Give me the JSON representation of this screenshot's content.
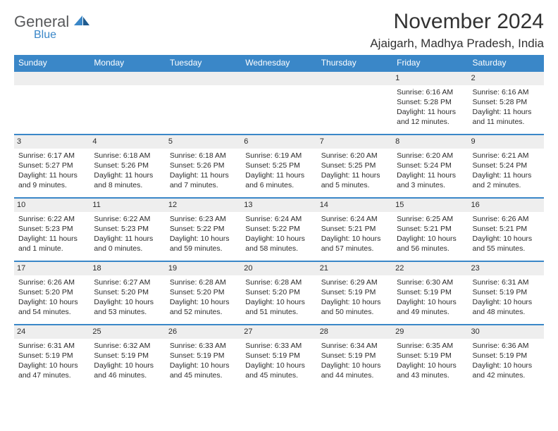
{
  "header": {
    "logo_general": "General",
    "logo_blue": "Blue",
    "month_title": "November 2024",
    "location": "Ajaigarh, Madhya Pradesh, India"
  },
  "style": {
    "accent_color": "#3a87c8",
    "daynum_bg": "#eeeeee",
    "text_color": "#2b2b2b",
    "header_text_color": "#ffffff",
    "logo_gray": "#58595b"
  },
  "daynames": [
    "Sunday",
    "Monday",
    "Tuesday",
    "Wednesday",
    "Thursday",
    "Friday",
    "Saturday"
  ],
  "weeks": [
    [
      null,
      null,
      null,
      null,
      null,
      {
        "n": "1",
        "sunrise": "Sunrise: 6:16 AM",
        "sunset": "Sunset: 5:28 PM",
        "daylight1": "Daylight: 11 hours",
        "daylight2": "and 12 minutes."
      },
      {
        "n": "2",
        "sunrise": "Sunrise: 6:16 AM",
        "sunset": "Sunset: 5:28 PM",
        "daylight1": "Daylight: 11 hours",
        "daylight2": "and 11 minutes."
      }
    ],
    [
      {
        "n": "3",
        "sunrise": "Sunrise: 6:17 AM",
        "sunset": "Sunset: 5:27 PM",
        "daylight1": "Daylight: 11 hours",
        "daylight2": "and 9 minutes."
      },
      {
        "n": "4",
        "sunrise": "Sunrise: 6:18 AM",
        "sunset": "Sunset: 5:26 PM",
        "daylight1": "Daylight: 11 hours",
        "daylight2": "and 8 minutes."
      },
      {
        "n": "5",
        "sunrise": "Sunrise: 6:18 AM",
        "sunset": "Sunset: 5:26 PM",
        "daylight1": "Daylight: 11 hours",
        "daylight2": "and 7 minutes."
      },
      {
        "n": "6",
        "sunrise": "Sunrise: 6:19 AM",
        "sunset": "Sunset: 5:25 PM",
        "daylight1": "Daylight: 11 hours",
        "daylight2": "and 6 minutes."
      },
      {
        "n": "7",
        "sunrise": "Sunrise: 6:20 AM",
        "sunset": "Sunset: 5:25 PM",
        "daylight1": "Daylight: 11 hours",
        "daylight2": "and 5 minutes."
      },
      {
        "n": "8",
        "sunrise": "Sunrise: 6:20 AM",
        "sunset": "Sunset: 5:24 PM",
        "daylight1": "Daylight: 11 hours",
        "daylight2": "and 3 minutes."
      },
      {
        "n": "9",
        "sunrise": "Sunrise: 6:21 AM",
        "sunset": "Sunset: 5:24 PM",
        "daylight1": "Daylight: 11 hours",
        "daylight2": "and 2 minutes."
      }
    ],
    [
      {
        "n": "10",
        "sunrise": "Sunrise: 6:22 AM",
        "sunset": "Sunset: 5:23 PM",
        "daylight1": "Daylight: 11 hours",
        "daylight2": "and 1 minute."
      },
      {
        "n": "11",
        "sunrise": "Sunrise: 6:22 AM",
        "sunset": "Sunset: 5:23 PM",
        "daylight1": "Daylight: 11 hours",
        "daylight2": "and 0 minutes."
      },
      {
        "n": "12",
        "sunrise": "Sunrise: 6:23 AM",
        "sunset": "Sunset: 5:22 PM",
        "daylight1": "Daylight: 10 hours",
        "daylight2": "and 59 minutes."
      },
      {
        "n": "13",
        "sunrise": "Sunrise: 6:24 AM",
        "sunset": "Sunset: 5:22 PM",
        "daylight1": "Daylight: 10 hours",
        "daylight2": "and 58 minutes."
      },
      {
        "n": "14",
        "sunrise": "Sunrise: 6:24 AM",
        "sunset": "Sunset: 5:21 PM",
        "daylight1": "Daylight: 10 hours",
        "daylight2": "and 57 minutes."
      },
      {
        "n": "15",
        "sunrise": "Sunrise: 6:25 AM",
        "sunset": "Sunset: 5:21 PM",
        "daylight1": "Daylight: 10 hours",
        "daylight2": "and 56 minutes."
      },
      {
        "n": "16",
        "sunrise": "Sunrise: 6:26 AM",
        "sunset": "Sunset: 5:21 PM",
        "daylight1": "Daylight: 10 hours",
        "daylight2": "and 55 minutes."
      }
    ],
    [
      {
        "n": "17",
        "sunrise": "Sunrise: 6:26 AM",
        "sunset": "Sunset: 5:20 PM",
        "daylight1": "Daylight: 10 hours",
        "daylight2": "and 54 minutes."
      },
      {
        "n": "18",
        "sunrise": "Sunrise: 6:27 AM",
        "sunset": "Sunset: 5:20 PM",
        "daylight1": "Daylight: 10 hours",
        "daylight2": "and 53 minutes."
      },
      {
        "n": "19",
        "sunrise": "Sunrise: 6:28 AM",
        "sunset": "Sunset: 5:20 PM",
        "daylight1": "Daylight: 10 hours",
        "daylight2": "and 52 minutes."
      },
      {
        "n": "20",
        "sunrise": "Sunrise: 6:28 AM",
        "sunset": "Sunset: 5:20 PM",
        "daylight1": "Daylight: 10 hours",
        "daylight2": "and 51 minutes."
      },
      {
        "n": "21",
        "sunrise": "Sunrise: 6:29 AM",
        "sunset": "Sunset: 5:19 PM",
        "daylight1": "Daylight: 10 hours",
        "daylight2": "and 50 minutes."
      },
      {
        "n": "22",
        "sunrise": "Sunrise: 6:30 AM",
        "sunset": "Sunset: 5:19 PM",
        "daylight1": "Daylight: 10 hours",
        "daylight2": "and 49 minutes."
      },
      {
        "n": "23",
        "sunrise": "Sunrise: 6:31 AM",
        "sunset": "Sunset: 5:19 PM",
        "daylight1": "Daylight: 10 hours",
        "daylight2": "and 48 minutes."
      }
    ],
    [
      {
        "n": "24",
        "sunrise": "Sunrise: 6:31 AM",
        "sunset": "Sunset: 5:19 PM",
        "daylight1": "Daylight: 10 hours",
        "daylight2": "and 47 minutes."
      },
      {
        "n": "25",
        "sunrise": "Sunrise: 6:32 AM",
        "sunset": "Sunset: 5:19 PM",
        "daylight1": "Daylight: 10 hours",
        "daylight2": "and 46 minutes."
      },
      {
        "n": "26",
        "sunrise": "Sunrise: 6:33 AM",
        "sunset": "Sunset: 5:19 PM",
        "daylight1": "Daylight: 10 hours",
        "daylight2": "and 45 minutes."
      },
      {
        "n": "27",
        "sunrise": "Sunrise: 6:33 AM",
        "sunset": "Sunset: 5:19 PM",
        "daylight1": "Daylight: 10 hours",
        "daylight2": "and 45 minutes."
      },
      {
        "n": "28",
        "sunrise": "Sunrise: 6:34 AM",
        "sunset": "Sunset: 5:19 PM",
        "daylight1": "Daylight: 10 hours",
        "daylight2": "and 44 minutes."
      },
      {
        "n": "29",
        "sunrise": "Sunrise: 6:35 AM",
        "sunset": "Sunset: 5:19 PM",
        "daylight1": "Daylight: 10 hours",
        "daylight2": "and 43 minutes."
      },
      {
        "n": "30",
        "sunrise": "Sunrise: 6:36 AM",
        "sunset": "Sunset: 5:19 PM",
        "daylight1": "Daylight: 10 hours",
        "daylight2": "and 42 minutes."
      }
    ]
  ]
}
